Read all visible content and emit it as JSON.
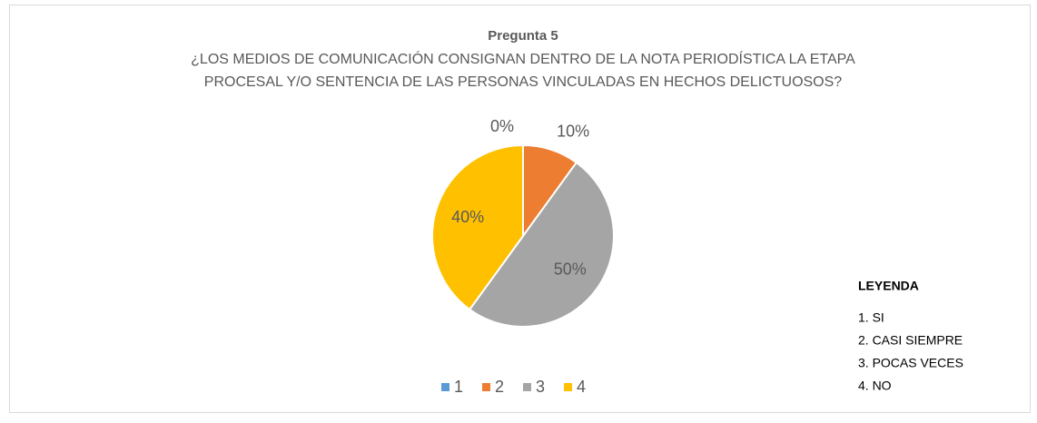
{
  "chart_data": {
    "type": "pie",
    "title": "Pregunta 5",
    "subtitle": [
      "¿LOS MEDIOS DE COMUNICACIÓN CONSIGNAN DENTRO DE LA NOTA PERIODÍSTICA LA ETAPA",
      "PROCESAL Y/O SENTENCIA DE LAS PERSONAS VINCULADAS EN HECHOS DELICTUOSOS?"
    ],
    "categories": [
      "1",
      "2",
      "3",
      "4"
    ],
    "values": [
      0,
      10,
      50,
      40
    ],
    "value_labels": [
      "0%",
      "10%",
      "50%",
      "40%"
    ],
    "colors": [
      "#5b9bd5",
      "#ed7d31",
      "#a5a5a5",
      "#ffc000"
    ],
    "legend": "bottom",
    "key": {
      "title": "LEYENDA",
      "items": [
        "1. SI",
        "2. CASI SIEMPRE",
        "3. POCAS VECES",
        "4. NO"
      ]
    }
  }
}
